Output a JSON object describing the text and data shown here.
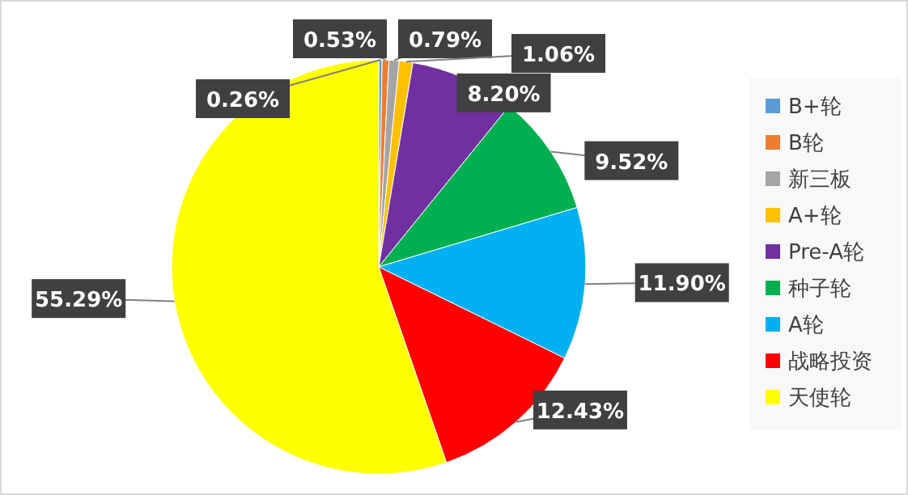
{
  "chart_data": {
    "type": "pie",
    "categories": [
      "B+轮",
      "B轮",
      "新三板",
      "A+轮",
      "Pre-A轮",
      "种子轮",
      "A轮",
      "战略投资",
      "天使轮"
    ],
    "values": [
      0.26,
      0.53,
      0.79,
      1.06,
      8.2,
      9.52,
      11.9,
      12.43,
      55.29
    ],
    "colors": [
      "#5b9bd5",
      "#ed7d31",
      "#a5a5a5",
      "#ffc000",
      "#7030a0",
      "#00b050",
      "#00b0f0",
      "#ff0000",
      "#ffff00"
    ],
    "value_labels": [
      "0.26%",
      "0.53%",
      "0.79%",
      "1.06%",
      "8.20%",
      "9.52%",
      "11.90%",
      "12.43%",
      "55.29%"
    ],
    "legend": "right"
  }
}
